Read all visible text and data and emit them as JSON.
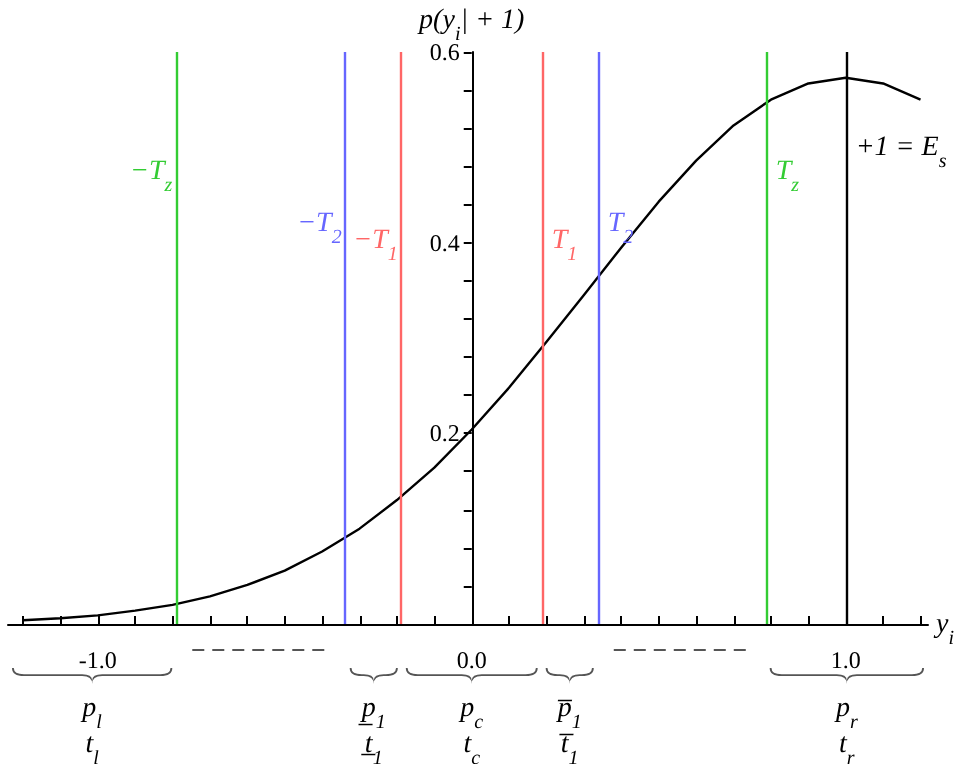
{
  "chart_data": {
    "type": "line",
    "xlabel": "y$_{i}$",
    "ylabel": "p(y$_{i}$| + 1)",
    "x": [
      -1.2,
      -1.1,
      -1.0,
      -0.9,
      -0.8,
      -0.7,
      -0.6,
      -0.5,
      -0.4,
      -0.3,
      -0.2,
      -0.1,
      0.0,
      0.1,
      0.2,
      0.3,
      0.4,
      0.5,
      0.6,
      0.7,
      0.8,
      0.9,
      1.0,
      1.1,
      1.2
    ],
    "series": [
      {
        "color": "#000000",
        "values": [
          0.004,
          0.006,
          0.009,
          0.014,
          0.02,
          0.029,
          0.041,
          0.056,
          0.076,
          0.1,
          0.13,
          0.164,
          0.204,
          0.248,
          0.296,
          0.345,
          0.395,
          0.443,
          0.486,
          0.523,
          0.55,
          0.567,
          0.573,
          0.567,
          0.55
        ]
      }
    ],
    "xlim": [
      -1.24,
      1.22
    ],
    "ylim": [
      0,
      0.6
    ],
    "xticks": [
      {
        "value": -1,
        "label": "-1.0"
      },
      {
        "value": 0,
        "label": "0.0"
      },
      {
        "value": 1,
        "label": "1.0"
      }
    ],
    "yticks": [
      {
        "value": 0,
        "label": null
      },
      0.2,
      0.4,
      0.6
    ],
    "ref_lines": [
      {
        "axis": "x",
        "value": -0.79,
        "label": "−T$_{z}$",
        "color": "#33cc33"
      },
      {
        "axis": "x",
        "value": -0.337,
        "label": "−T$_{2}$",
        "color": "#6666ff"
      },
      {
        "axis": "x",
        "value": -0.187,
        "label": "−T$_{1}$",
        "color": "#ff6666"
      },
      {
        "axis": "x",
        "value": 0.187,
        "label": "T$_{1}$",
        "color": "#ff6666"
      },
      {
        "axis": "x",
        "value": 0.337,
        "label": "T$_{2}$",
        "color": "#6666ff"
      },
      {
        "axis": "x",
        "value": 0.786,
        "label": "T$_{z}$",
        "color": "#33cc33"
      },
      {
        "axis": "x",
        "value": 1.0,
        "label": "+1 = E$_{s}$",
        "color": "#000000"
      }
    ],
    "annotations": [
      "p$_{l}$",
      "t$_{l}$",
      "p̲$_{1}$",
      "t̲$_{1}$",
      "p$_{c}$",
      "t$_{c}$",
      "p̅$_{1}$",
      "t̅$_{1}$",
      "p$_{r}$",
      "t$_{r}$"
    ],
    "grid": false,
    "marker": "none",
    "line_style": "solid"
  }
}
